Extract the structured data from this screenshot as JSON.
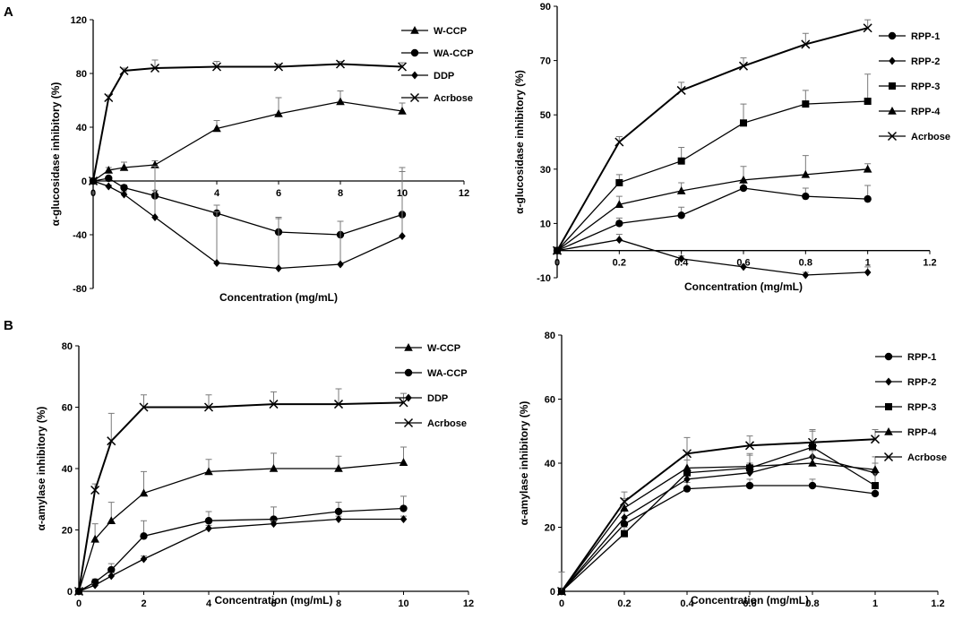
{
  "panels": {
    "A": "A",
    "B": "B"
  },
  "chart_data": [
    {
      "id": "A-left",
      "type": "line",
      "panel": "A",
      "title": "",
      "xlabel": "Concentration (mg/mL)",
      "ylabel": "α-glucosidase inhibitory (%)",
      "xlim": [
        0,
        12
      ],
      "ylim": [
        -80,
        120
      ],
      "xticks": [
        0,
        2,
        4,
        6,
        8,
        10,
        12
      ],
      "yticks": [
        -80,
        -40,
        0,
        40,
        80,
        120
      ],
      "xtick_labels": [
        "0",
        "2",
        "4",
        "6",
        "8",
        "10",
        "12"
      ],
      "ytick_labels": [
        "-80",
        "-40",
        "0",
        "40",
        "80",
        "120"
      ],
      "legend_position": "top-right",
      "series": [
        {
          "name": "W-CCP",
          "marker": "triangle",
          "x": [
            0,
            0.5,
            1,
            2,
            4,
            6,
            8,
            10
          ],
          "values": [
            0,
            8,
            10,
            12,
            39,
            50,
            59,
            52
          ],
          "errors": [
            0,
            2,
            4,
            3,
            6,
            12,
            8,
            6
          ]
        },
        {
          "name": "WA-CCP",
          "marker": "circle",
          "x": [
            0,
            0.5,
            1,
            2,
            4,
            6,
            8,
            10
          ],
          "values": [
            0,
            2,
            -5,
            -11,
            -24,
            -38,
            -40,
            -25
          ],
          "errors": [
            0,
            1,
            2,
            4,
            6,
            10,
            10,
            35
          ]
        },
        {
          "name": "DDP",
          "marker": "diamond",
          "x": [
            0,
            0.5,
            1,
            2,
            4,
            6,
            8,
            10
          ],
          "values": [
            0,
            -4,
            -10,
            -27,
            -61,
            -65,
            -62,
            -41
          ],
          "errors": [
            0,
            1,
            2,
            38,
            38,
            38,
            32,
            48
          ]
        },
        {
          "name": "Acrbose",
          "marker": "x",
          "x": [
            0,
            0.5,
            1,
            2,
            4,
            6,
            8,
            10
          ],
          "values": [
            0,
            62,
            82,
            84,
            85,
            85,
            87,
            85
          ],
          "errors": [
            0,
            2,
            2,
            6,
            4,
            2,
            2,
            3
          ]
        }
      ]
    },
    {
      "id": "A-right",
      "type": "line",
      "panel": "A",
      "title": "",
      "xlabel": "Concentration (mg/mL)",
      "ylabel": "α-glucosidase inhibitory (%)",
      "xlim": [
        0,
        1.2
      ],
      "ylim": [
        -10,
        90
      ],
      "xticks": [
        0,
        0.2,
        0.4,
        0.6,
        0.8,
        1,
        1.2
      ],
      "yticks": [
        -10,
        10,
        30,
        50,
        70,
        90
      ],
      "xtick_labels": [
        "0",
        "0.2",
        "0.4",
        "0.6",
        "0.8",
        "1",
        "1.2"
      ],
      "ytick_labels": [
        "-10",
        "10",
        "30",
        "50",
        "70",
        "90"
      ],
      "legend_position": "top-right",
      "series": [
        {
          "name": "RPP-1",
          "marker": "circle",
          "x": [
            0,
            0.2,
            0.4,
            0.6,
            0.8,
            1
          ],
          "values": [
            0,
            10,
            13,
            23,
            20,
            19
          ],
          "errors": [
            0,
            2,
            3,
            3,
            3,
            5
          ]
        },
        {
          "name": "RPP-2",
          "marker": "diamond",
          "x": [
            0,
            0.2,
            0.4,
            0.6,
            0.8,
            1
          ],
          "values": [
            0,
            4,
            -3,
            -6,
            -9,
            -8
          ],
          "errors": [
            0,
            2,
            1,
            1,
            1,
            2
          ]
        },
        {
          "name": "RPP-3",
          "marker": "square",
          "x": [
            0,
            0.2,
            0.4,
            0.6,
            0.8,
            1
          ],
          "values": [
            0,
            25,
            33,
            47,
            54,
            55
          ],
          "errors": [
            0,
            3,
            5,
            7,
            5,
            10
          ]
        },
        {
          "name": "RPP-4",
          "marker": "triangle",
          "x": [
            0,
            0.2,
            0.4,
            0.6,
            0.8,
            1
          ],
          "values": [
            0,
            17,
            22,
            26,
            28,
            30
          ],
          "errors": [
            0,
            3,
            3,
            5,
            7,
            2
          ]
        },
        {
          "name": "Acrbose",
          "marker": "x",
          "x": [
            0,
            0.2,
            0.4,
            0.6,
            0.8,
            1
          ],
          "values": [
            0,
            40,
            59,
            68,
            76,
            82
          ],
          "errors": [
            0,
            2,
            3,
            3,
            4,
            3
          ]
        }
      ]
    },
    {
      "id": "B-left",
      "type": "line",
      "panel": "B",
      "title": "",
      "xlabel": "Concentration (mg/mL)",
      "ylabel": "α-amylase inhibitory (%)",
      "xlim": [
        0,
        12
      ],
      "ylim": [
        0,
        80
      ],
      "xticks": [
        0,
        2,
        4,
        6,
        8,
        10,
        12
      ],
      "yticks": [
        0,
        20,
        40,
        60,
        80
      ],
      "xtick_labels": [
        "0",
        "2",
        "4",
        "6",
        "8",
        "10",
        "12"
      ],
      "ytick_labels": [
        "0",
        "20",
        "40",
        "60",
        "80"
      ],
      "legend_position": "top-right",
      "series": [
        {
          "name": "W-CCP",
          "marker": "triangle",
          "x": [
            0,
            0.5,
            1,
            2,
            4,
            6,
            8,
            10
          ],
          "values": [
            0,
            17,
            23,
            32,
            39,
            40,
            40,
            42
          ],
          "errors": [
            0,
            5,
            6,
            7,
            4,
            5,
            4,
            5
          ]
        },
        {
          "name": "WA-CCP",
          "marker": "circle",
          "x": [
            0,
            0.5,
            1,
            2,
            4,
            6,
            8,
            10
          ],
          "values": [
            0,
            3,
            7,
            18,
            23,
            23.5,
            26,
            27
          ],
          "errors": [
            0,
            1,
            2,
            5,
            3,
            4,
            3,
            4
          ]
        },
        {
          "name": "DDP",
          "marker": "diamond",
          "x": [
            0,
            0.5,
            1,
            2,
            4,
            6,
            8,
            10
          ],
          "values": [
            0,
            2,
            5,
            10.5,
            20.5,
            22,
            23.5,
            23.5
          ],
          "errors": [
            0,
            0.5,
            1,
            1,
            1,
            1,
            1,
            1
          ]
        },
        {
          "name": "Acrbose",
          "marker": "x",
          "x": [
            0,
            0.5,
            1,
            2,
            4,
            6,
            8,
            10
          ],
          "values": [
            0,
            33,
            49,
            60,
            60,
            61,
            61,
            61.5
          ],
          "errors": [
            0,
            2,
            9,
            4,
            4,
            4,
            5,
            3
          ]
        }
      ]
    },
    {
      "id": "B-right",
      "type": "line",
      "panel": "B",
      "title": "",
      "xlabel": "Concentration (mg/mL)",
      "ylabel": "α-amylase inhibitory (%)",
      "xlim": [
        0,
        1.2
      ],
      "ylim": [
        0,
        80
      ],
      "xticks": [
        0,
        0.2,
        0.4,
        0.6,
        0.8,
        1,
        1.2
      ],
      "yticks": [
        0,
        20,
        40,
        60,
        80
      ],
      "xtick_labels": [
        "0",
        "0.2",
        "0.4",
        "0.6",
        "0.8",
        "1",
        "1.2"
      ],
      "ytick_labels": [
        "0",
        "20",
        "40",
        "60",
        "80"
      ],
      "legend_position": "top-right",
      "series": [
        {
          "name": "RPP-1",
          "marker": "circle",
          "x": [
            0,
            0.2,
            0.4,
            0.6,
            0.8,
            1
          ],
          "values": [
            0,
            21,
            32,
            33,
            33,
            30.5
          ],
          "errors": [
            0,
            2,
            2,
            2,
            2,
            2
          ]
        },
        {
          "name": "RPP-2",
          "marker": "diamond",
          "x": [
            0,
            0.2,
            0.4,
            0.6,
            0.8,
            1
          ],
          "values": [
            0,
            23,
            35,
            37,
            42,
            37
          ],
          "errors": [
            0,
            2,
            3,
            3,
            4,
            3
          ]
        },
        {
          "name": "RPP-3",
          "marker": "square",
          "x": [
            0,
            0.2,
            0.4,
            0.6,
            0.8,
            1
          ],
          "values": [
            0,
            18,
            37,
            38.5,
            45,
            33
          ],
          "errors": [
            0,
            2,
            4,
            4,
            5,
            4
          ]
        },
        {
          "name": "RPP-4",
          "marker": "triangle",
          "x": [
            0,
            0.2,
            0.4,
            0.6,
            0.8,
            1
          ],
          "values": [
            0,
            26,
            38.5,
            39,
            40,
            38
          ],
          "errors": [
            0,
            3,
            4,
            4,
            4,
            4
          ]
        },
        {
          "name": "Acrbose",
          "marker": "x",
          "x": [
            0,
            0.2,
            0.4,
            0.6,
            0.8,
            1
          ],
          "values": [
            0,
            28,
            43,
            45.5,
            46.5,
            47.5
          ],
          "errors": [
            6,
            3,
            5,
            3,
            4,
            3
          ]
        }
      ]
    }
  ]
}
